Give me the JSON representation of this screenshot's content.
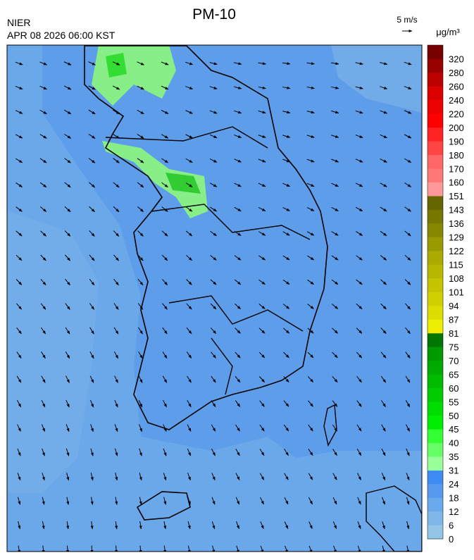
{
  "header": {
    "title": "PM-10",
    "agency": "NIER",
    "datetime": "APR 08 2026 06:00 KST",
    "wind_scale": "5 m/s",
    "unit": "μg/m³"
  },
  "colorbar": {
    "labels": [
      0,
      6,
      12,
      18,
      24,
      31,
      35,
      40,
      45,
      50,
      55,
      60,
      65,
      70,
      75,
      81,
      87,
      94,
      101,
      108,
      115,
      122,
      129,
      136,
      143,
      151,
      160,
      170,
      180,
      190,
      200,
      220,
      240,
      260,
      280,
      320
    ],
    "colors": [
      "#93c5e6",
      "#80b7ea",
      "#6ba9ed",
      "#5699ee",
      "#3e8cf2",
      "#99ff99",
      "#66ff66",
      "#33ff33",
      "#00ee00",
      "#00dd00",
      "#00cc00",
      "#00bb00",
      "#00aa00",
      "#009900",
      "#007700",
      "#eeee00",
      "#dddd00",
      "#d0d000",
      "#c4c400",
      "#b8b800",
      "#aaaa00",
      "#999900",
      "#888800",
      "#777700",
      "#666600",
      "#ff9999",
      "#ff7777",
      "#ff6666",
      "#ff4444",
      "#ff2222",
      "#ff0000",
      "#ee0000",
      "#dd0000",
      "#bb0000",
      "#990000",
      "#770000"
    ]
  }
}
